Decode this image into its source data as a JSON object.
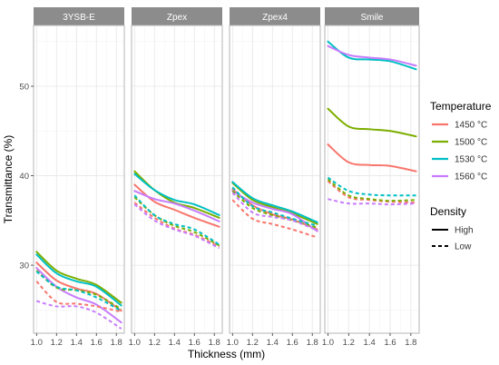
{
  "chart_data": {
    "type": "line",
    "xlabel": "Thickness (mm)",
    "ylabel": "Transmittance (%)",
    "xlim": [
      0.97,
      1.88
    ],
    "ylim": [
      22.4,
      56.8
    ],
    "x_ticks": [
      1.0,
      1.2,
      1.4,
      1.6,
      1.8
    ],
    "x_tick_labels": [
      "1.0",
      "1.2",
      "1.4",
      "1.6",
      "1.8"
    ],
    "y_ticks": [
      30,
      40,
      50
    ],
    "y_tick_labels": [
      "30",
      "40",
      "50"
    ],
    "grid": true,
    "x": [
      1.0,
      1.2,
      1.4,
      1.6,
      1.85
    ],
    "legend": {
      "placement": "right",
      "color": {
        "title": "Temperature",
        "entries": [
          {
            "label": "1450 °C",
            "color": "#F8766D"
          },
          {
            "label": "1500 °C",
            "color": "#7CAE00"
          },
          {
            "label": "1530 °C",
            "color": "#00BFC4"
          },
          {
            "label": "1560 °C",
            "color": "#C77CFF"
          }
        ]
      },
      "linetype": {
        "title": "Density",
        "entries": [
          {
            "label": "High",
            "dash": "solid"
          },
          {
            "label": "Low",
            "dash": "dashed"
          }
        ]
      }
    },
    "panels": [
      {
        "title": "3YSB-E",
        "series": [
          {
            "temperature": "1450 °C",
            "density": "High",
            "values": [
              30.3,
              28.3,
              27.4,
              26.8,
              24.9
            ]
          },
          {
            "temperature": "1500 °C",
            "density": "High",
            "values": [
              31.5,
              29.4,
              28.5,
              27.8,
              25.8
            ]
          },
          {
            "temperature": "1530 °C",
            "density": "High",
            "values": [
              31.2,
              29.1,
              28.2,
              27.6,
              25.5
            ]
          },
          {
            "temperature": "1560 °C",
            "density": "High",
            "values": [
              29.7,
              27.6,
              26.4,
              25.6,
              23.6
            ]
          },
          {
            "temperature": "1450 °C",
            "density": "Low",
            "values": [
              28.2,
              25.9,
              25.7,
              25.4,
              24.8
            ]
          },
          {
            "temperature": "1500 °C",
            "density": "Low",
            "values": [
              29.4,
              27.5,
              27.2,
              26.7,
              25.1
            ]
          },
          {
            "temperature": "1530 °C",
            "density": "Low",
            "values": [
              29.3,
              27.6,
              27.2,
              26.4,
              24.9
            ]
          },
          {
            "temperature": "1560 °C",
            "density": "Low",
            "values": [
              26.0,
              25.4,
              25.4,
              24.7,
              22.9
            ]
          }
        ]
      },
      {
        "title": "Zpex",
        "series": [
          {
            "temperature": "1450 °C",
            "density": "High",
            "values": [
              39.0,
              37.1,
              36.2,
              35.3,
              34.3
            ]
          },
          {
            "temperature": "1500 °C",
            "density": "High",
            "values": [
              40.5,
              38.4,
              37.0,
              36.4,
              35.3
            ]
          },
          {
            "temperature": "1530 °C",
            "density": "High",
            "values": [
              40.2,
              38.4,
              37.3,
              36.8,
              35.6
            ]
          },
          {
            "temperature": "1560 °C",
            "density": "High",
            "values": [
              38.3,
              37.4,
              36.9,
              36.1,
              34.9
            ]
          },
          {
            "temperature": "1450 °C",
            "density": "Low",
            "values": [
              37.0,
              35.3,
              34.1,
              33.4,
              32.1
            ]
          },
          {
            "temperature": "1500 °C",
            "density": "Low",
            "values": [
              37.6,
              35.6,
              34.4,
              33.7,
              32.2
            ]
          },
          {
            "temperature": "1530 °C",
            "density": "Low",
            "values": [
              37.8,
              35.6,
              34.6,
              34.0,
              32.3
            ]
          },
          {
            "temperature": "1560 °C",
            "density": "Low",
            "values": [
              36.8,
              35.0,
              34.0,
              33.3,
              31.9
            ]
          }
        ]
      },
      {
        "title": "Zpex4",
        "series": [
          {
            "temperature": "1450 °C",
            "density": "High",
            "values": [
              38.5,
              36.7,
              35.7,
              35.1,
              34.0
            ]
          },
          {
            "temperature": "1500 °C",
            "density": "High",
            "values": [
              39.2,
              37.3,
              36.5,
              35.8,
              34.6
            ]
          },
          {
            "temperature": "1530 °C",
            "density": "High",
            "values": [
              39.3,
              37.5,
              36.7,
              36.0,
              34.8
            ]
          },
          {
            "temperature": "1560 °C",
            "density": "High",
            "values": [
              38.3,
              37.0,
              36.3,
              35.7,
              33.8
            ]
          },
          {
            "temperature": "1450 °C",
            "density": "Low",
            "values": [
              37.3,
              35.2,
              34.6,
              34.0,
              33.1
            ]
          },
          {
            "temperature": "1500 °C",
            "density": "Low",
            "values": [
              38.3,
              36.4,
              35.6,
              35.0,
              34.2
            ]
          },
          {
            "temperature": "1530 °C",
            "density": "Low",
            "values": [
              38.7,
              36.6,
              35.9,
              35.2,
              34.4
            ]
          },
          {
            "temperature": "1560 °C",
            "density": "Low",
            "values": [
              38.1,
              35.9,
              35.4,
              35.0,
              33.9
            ]
          }
        ]
      },
      {
        "title": "Smile",
        "series": [
          {
            "temperature": "1450 °C",
            "density": "High",
            "values": [
              43.5,
              41.5,
              41.2,
              41.1,
              40.5
            ]
          },
          {
            "temperature": "1500 °C",
            "density": "High",
            "values": [
              47.5,
              45.5,
              45.2,
              45.0,
              44.4
            ]
          },
          {
            "temperature": "1530 °C",
            "density": "High",
            "values": [
              55.0,
              53.2,
              53.0,
              52.8,
              51.9
            ]
          },
          {
            "temperature": "1560 °C",
            "density": "High",
            "values": [
              54.5,
              53.5,
              53.2,
              53.0,
              52.3
            ]
          },
          {
            "temperature": "1450 °C",
            "density": "Low",
            "values": [
              39.4,
              37.6,
              37.3,
              37.1,
              37.0
            ]
          },
          {
            "temperature": "1500 °C",
            "density": "Low",
            "values": [
              39.6,
              37.8,
              37.4,
              37.2,
              37.3
            ]
          },
          {
            "temperature": "1530 °C",
            "density": "Low",
            "values": [
              39.8,
              38.3,
              37.9,
              37.8,
              37.8
            ]
          },
          {
            "temperature": "1560 °C",
            "density": "Low",
            "values": [
              37.4,
              36.9,
              36.9,
              36.8,
              36.9
            ]
          }
        ]
      }
    ]
  }
}
